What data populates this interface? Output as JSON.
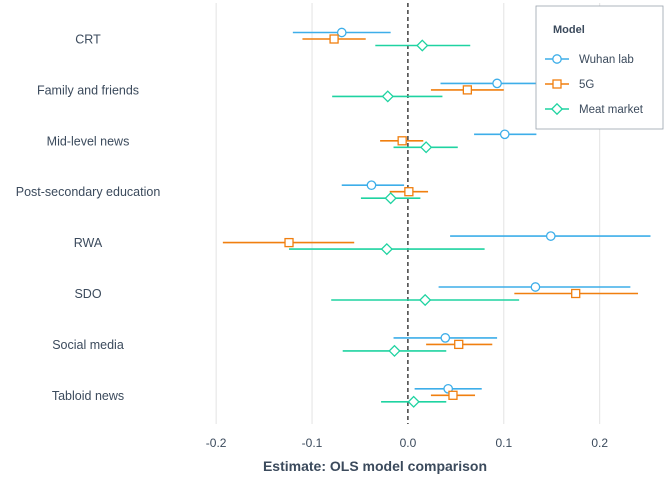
{
  "chart_data": {
    "type": "scatter",
    "subtype": "coefficient-plot",
    "title": "",
    "xlabel": "Estimate: OLS model comparison",
    "ylabel": "",
    "xlim": [
      -0.245,
      0.265
    ],
    "xticks": [
      -0.2,
      -0.1,
      0.0,
      0.1,
      0.2
    ],
    "xtick_labels": [
      "-0.2",
      "-0.1",
      "0.0",
      "0.1",
      "0.2"
    ],
    "reference_line": 0,
    "grid": "vertical",
    "categories": [
      "CRT",
      "Family and friends",
      "Mid-level news",
      "Post-secondary education",
      "RWA",
      "SDO",
      "Social media",
      "Tabloid news"
    ],
    "legend": {
      "title": "Model",
      "position": "top-right"
    },
    "series": [
      {
        "name": "Wuhan lab",
        "color": "#3daee9",
        "marker": "circle",
        "estimates": [
          -0.069,
          0.093,
          0.101,
          -0.038,
          0.149,
          0.133,
          0.039,
          0.042
        ],
        "lower": [
          -0.12,
          0.034,
          0.069,
          -0.069,
          0.044,
          0.032,
          -0.015,
          0.007
        ],
        "upper": [
          -0.018,
          0.153,
          0.134,
          -0.004,
          0.253,
          0.232,
          0.093,
          0.077
        ]
      },
      {
        "name": "5G",
        "color": "#f07f0f",
        "marker": "square",
        "estimates": [
          -0.077,
          0.062,
          -0.006,
          0.001,
          -0.124,
          0.175,
          0.053,
          0.047
        ],
        "lower": [
          -0.11,
          0.024,
          -0.029,
          -0.019,
          -0.193,
          0.111,
          0.019,
          0.024
        ],
        "upper": [
          -0.044,
          0.1,
          0.016,
          0.021,
          -0.056,
          0.24,
          0.088,
          0.07
        ]
      },
      {
        "name": "Meat market",
        "color": "#1fd3a1",
        "marker": "diamond",
        "estimates": [
          0.015,
          -0.021,
          0.019,
          -0.018,
          -0.022,
          0.018,
          -0.014,
          0.006
        ],
        "lower": [
          -0.034,
          -0.079,
          -0.015,
          -0.049,
          -0.124,
          -0.08,
          -0.068,
          -0.028
        ],
        "upper": [
          0.065,
          0.036,
          0.052,
          0.013,
          0.08,
          0.116,
          0.04,
          0.04
        ]
      }
    ]
  }
}
